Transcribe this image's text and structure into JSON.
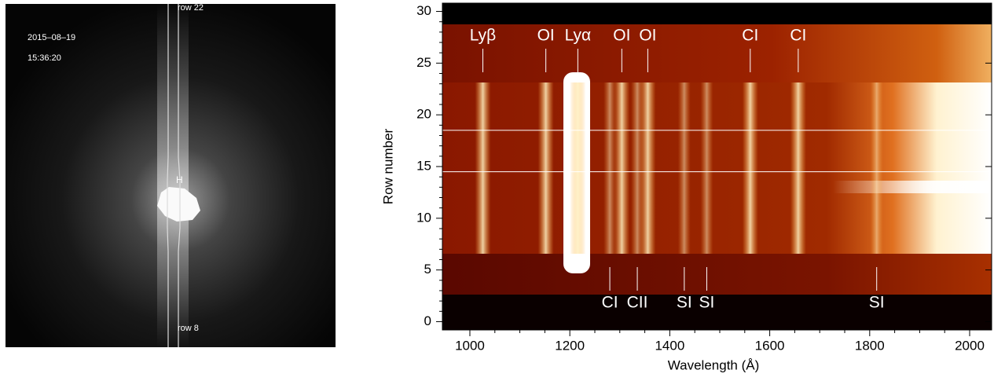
{
  "image": {
    "date": "2015–08–19",
    "time": "15:36:20",
    "top_label": "row 22",
    "bottom_label": "row 8",
    "marker": "H"
  },
  "chart_data": {
    "type": "heatmap",
    "xlabel": "Wavelength (Å)",
    "ylabel": "Row number",
    "xlim": [
      945,
      2044
    ],
    "ylim": [
      -0.8,
      30.8
    ],
    "xticks": [
      1000,
      1200,
      1400,
      1600,
      1800,
      2000
    ],
    "yticks": [
      0,
      5,
      10,
      15,
      20,
      25,
      30
    ],
    "lines_top": [
      {
        "x": 1026,
        "label": "Lyβ"
      },
      {
        "x": 1152,
        "label": "OI"
      },
      {
        "x": 1216,
        "label": "Lyα"
      },
      {
        "x": 1304,
        "label": "OI"
      },
      {
        "x": 1356,
        "label": "OI"
      },
      {
        "x": 1561,
        "label": "CI"
      },
      {
        "x": 1657,
        "label": "CI"
      }
    ],
    "lines_bottom": [
      {
        "x": 1280,
        "label": "CI"
      },
      {
        "x": 1335,
        "label": "CII"
      },
      {
        "x": 1429,
        "label": "SI"
      },
      {
        "x": 1474,
        "label": "SI"
      },
      {
        "x": 1814,
        "label": "SI"
      }
    ],
    "marked_rows": [
      18.5,
      14.5
    ]
  }
}
